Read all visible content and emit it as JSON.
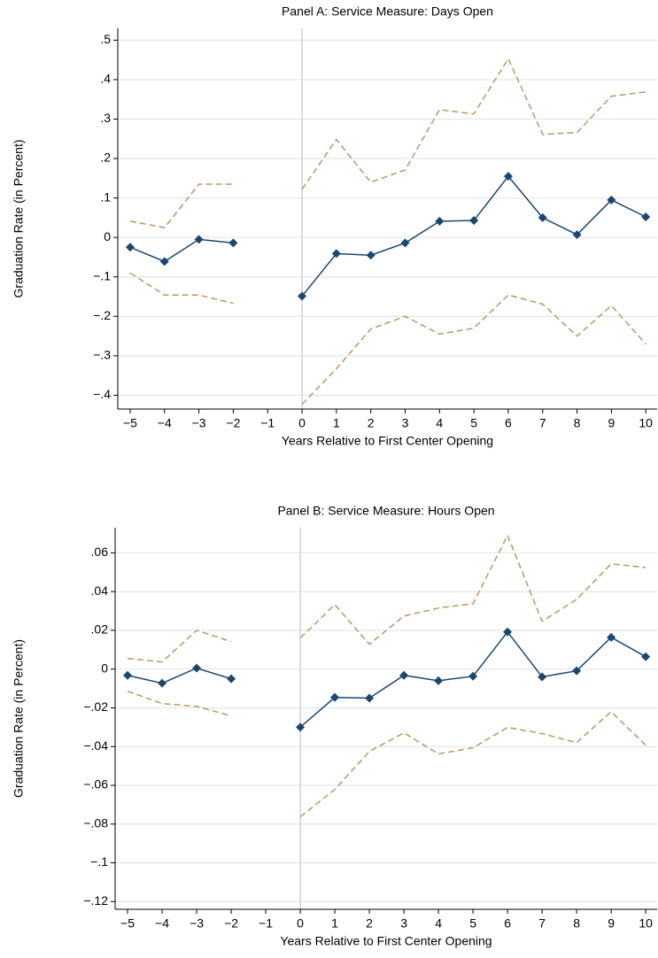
{
  "chart_data": [
    {
      "type": "line",
      "title": "Panel A: Service Measure: Days Open",
      "xlabel": "Years Relative to First Center Opening",
      "ylabel": "Graduation Rate (in Percent)",
      "x": [
        -5,
        -4,
        -3,
        -2,
        -1,
        0,
        1,
        2,
        3,
        4,
        5,
        6,
        7,
        8,
        9,
        10
      ],
      "series": [
        {
          "color": "#b59a63",
          "dashed": true,
          "values": [
            0.041,
            0.025,
            0.135,
            0.135,
            null,
            0.122,
            0.248,
            0.14,
            0.171,
            0.324,
            0.313,
            0.453,
            0.261,
            0.266,
            0.358,
            0.369
          ]
        },
        {
          "color": "#b59a63",
          "dashed": true,
          "values": [
            -0.09,
            -0.146,
            -0.146,
            -0.167,
            null,
            -0.423,
            -0.333,
            -0.232,
            -0.2,
            -0.245,
            -0.23,
            -0.146,
            -0.169,
            -0.25,
            -0.173,
            -0.27
          ]
        },
        {
          "color": "#1a476f",
          "marker": "diamond",
          "values": [
            -0.025,
            -0.061,
            -0.005,
            -0.014,
            null,
            -0.149,
            -0.041,
            -0.045,
            -0.014,
            0.041,
            0.043,
            0.155,
            0.05,
            0.007,
            0.095,
            0.052
          ]
        }
      ],
      "xlim": [
        -5.36,
        10.33
      ],
      "xticks": [
        {
          "value": -5,
          "label": "−5"
        },
        {
          "value": -4,
          "label": "−4"
        },
        {
          "value": -3,
          "label": "−3"
        },
        {
          "value": -2,
          "label": "−2"
        },
        {
          "value": -1,
          "label": "−1"
        },
        0,
        1,
        2,
        3,
        4,
        5,
        6,
        7,
        8,
        9,
        10
      ],
      "ylim": [
        -0.435,
        0.53
      ],
      "yticks": [
        {
          "value": -0.4,
          "label": "−.4"
        },
        {
          "value": -0.3,
          "label": "−.3"
        },
        {
          "value": -0.2,
          "label": "−.2"
        },
        {
          "value": -0.1,
          "label": "−.1"
        },
        0,
        {
          "value": 0.1,
          "label": ".1"
        },
        {
          "value": 0.2,
          "label": ".2"
        },
        {
          "value": 0.3,
          "label": ".3"
        },
        {
          "value": 0.4,
          "label": ".4"
        },
        {
          "value": 0.5,
          "label": ".5"
        }
      ],
      "xline": 0,
      "grid": true
    },
    {
      "type": "line",
      "title": "Panel B: Service Measure: Hours Open",
      "xlabel": "Years Relative to First Center Opening",
      "ylabel": "Graduation Rate (in Percent)",
      "x": [
        -5,
        -4,
        -3,
        -2,
        -1,
        0,
        1,
        2,
        3,
        4,
        5,
        6,
        7,
        8,
        9,
        10
      ],
      "series": [
        {
          "color": "#b59a63",
          "dashed": true,
          "values": [
            0.0055,
            0.0037,
            0.02,
            0.0142,
            null,
            0.016,
            0.0333,
            0.0128,
            0.0274,
            0.0315,
            0.0338,
            0.069,
            0.0247,
            0.036,
            0.0543,
            0.0525
          ]
        },
        {
          "color": "#b59a63",
          "dashed": true,
          "values": [
            -0.0114,
            -0.0178,
            -0.0192,
            -0.0242,
            null,
            -0.0763,
            -0.0621,
            -0.0425,
            -0.0329,
            -0.0438,
            -0.0406,
            -0.0301,
            -0.0333,
            -0.0379,
            -0.022,
            -0.0393
          ]
        },
        {
          "color": "#1a476f",
          "marker": "diamond",
          "values": [
            -0.0032,
            -0.0073,
            0.0005,
            -0.005,
            null,
            -0.03,
            -0.0146,
            -0.015,
            -0.0032,
            -0.006,
            -0.0037,
            0.0192,
            -0.004,
            -0.0009,
            0.0164,
            0.0064
          ]
        }
      ],
      "xlim": [
        -5.36,
        10.33
      ],
      "xticks": [
        {
          "value": -5,
          "label": "−5"
        },
        {
          "value": -4,
          "label": "−4"
        },
        {
          "value": -3,
          "label": "−3"
        },
        {
          "value": -2,
          "label": "−2"
        },
        {
          "value": -1,
          "label": "−1"
        },
        0,
        1,
        2,
        3,
        4,
        5,
        6,
        7,
        8,
        9,
        10
      ],
      "ylim": [
        -0.124,
        0.073
      ],
      "yticks": [
        {
          "value": -0.12,
          "label": "−.12"
        },
        {
          "value": -0.1,
          "label": "−.1"
        },
        {
          "value": -0.08,
          "label": "−.08"
        },
        {
          "value": -0.06,
          "label": "−.06"
        },
        {
          "value": -0.04,
          "label": "−.04"
        },
        {
          "value": -0.02,
          "label": "−.02"
        },
        0,
        {
          "value": 0.02,
          "label": ".02"
        },
        {
          "value": 0.04,
          "label": ".04"
        },
        {
          "value": 0.06,
          "label": ".06"
        }
      ],
      "xline": 0,
      "grid": true
    }
  ]
}
